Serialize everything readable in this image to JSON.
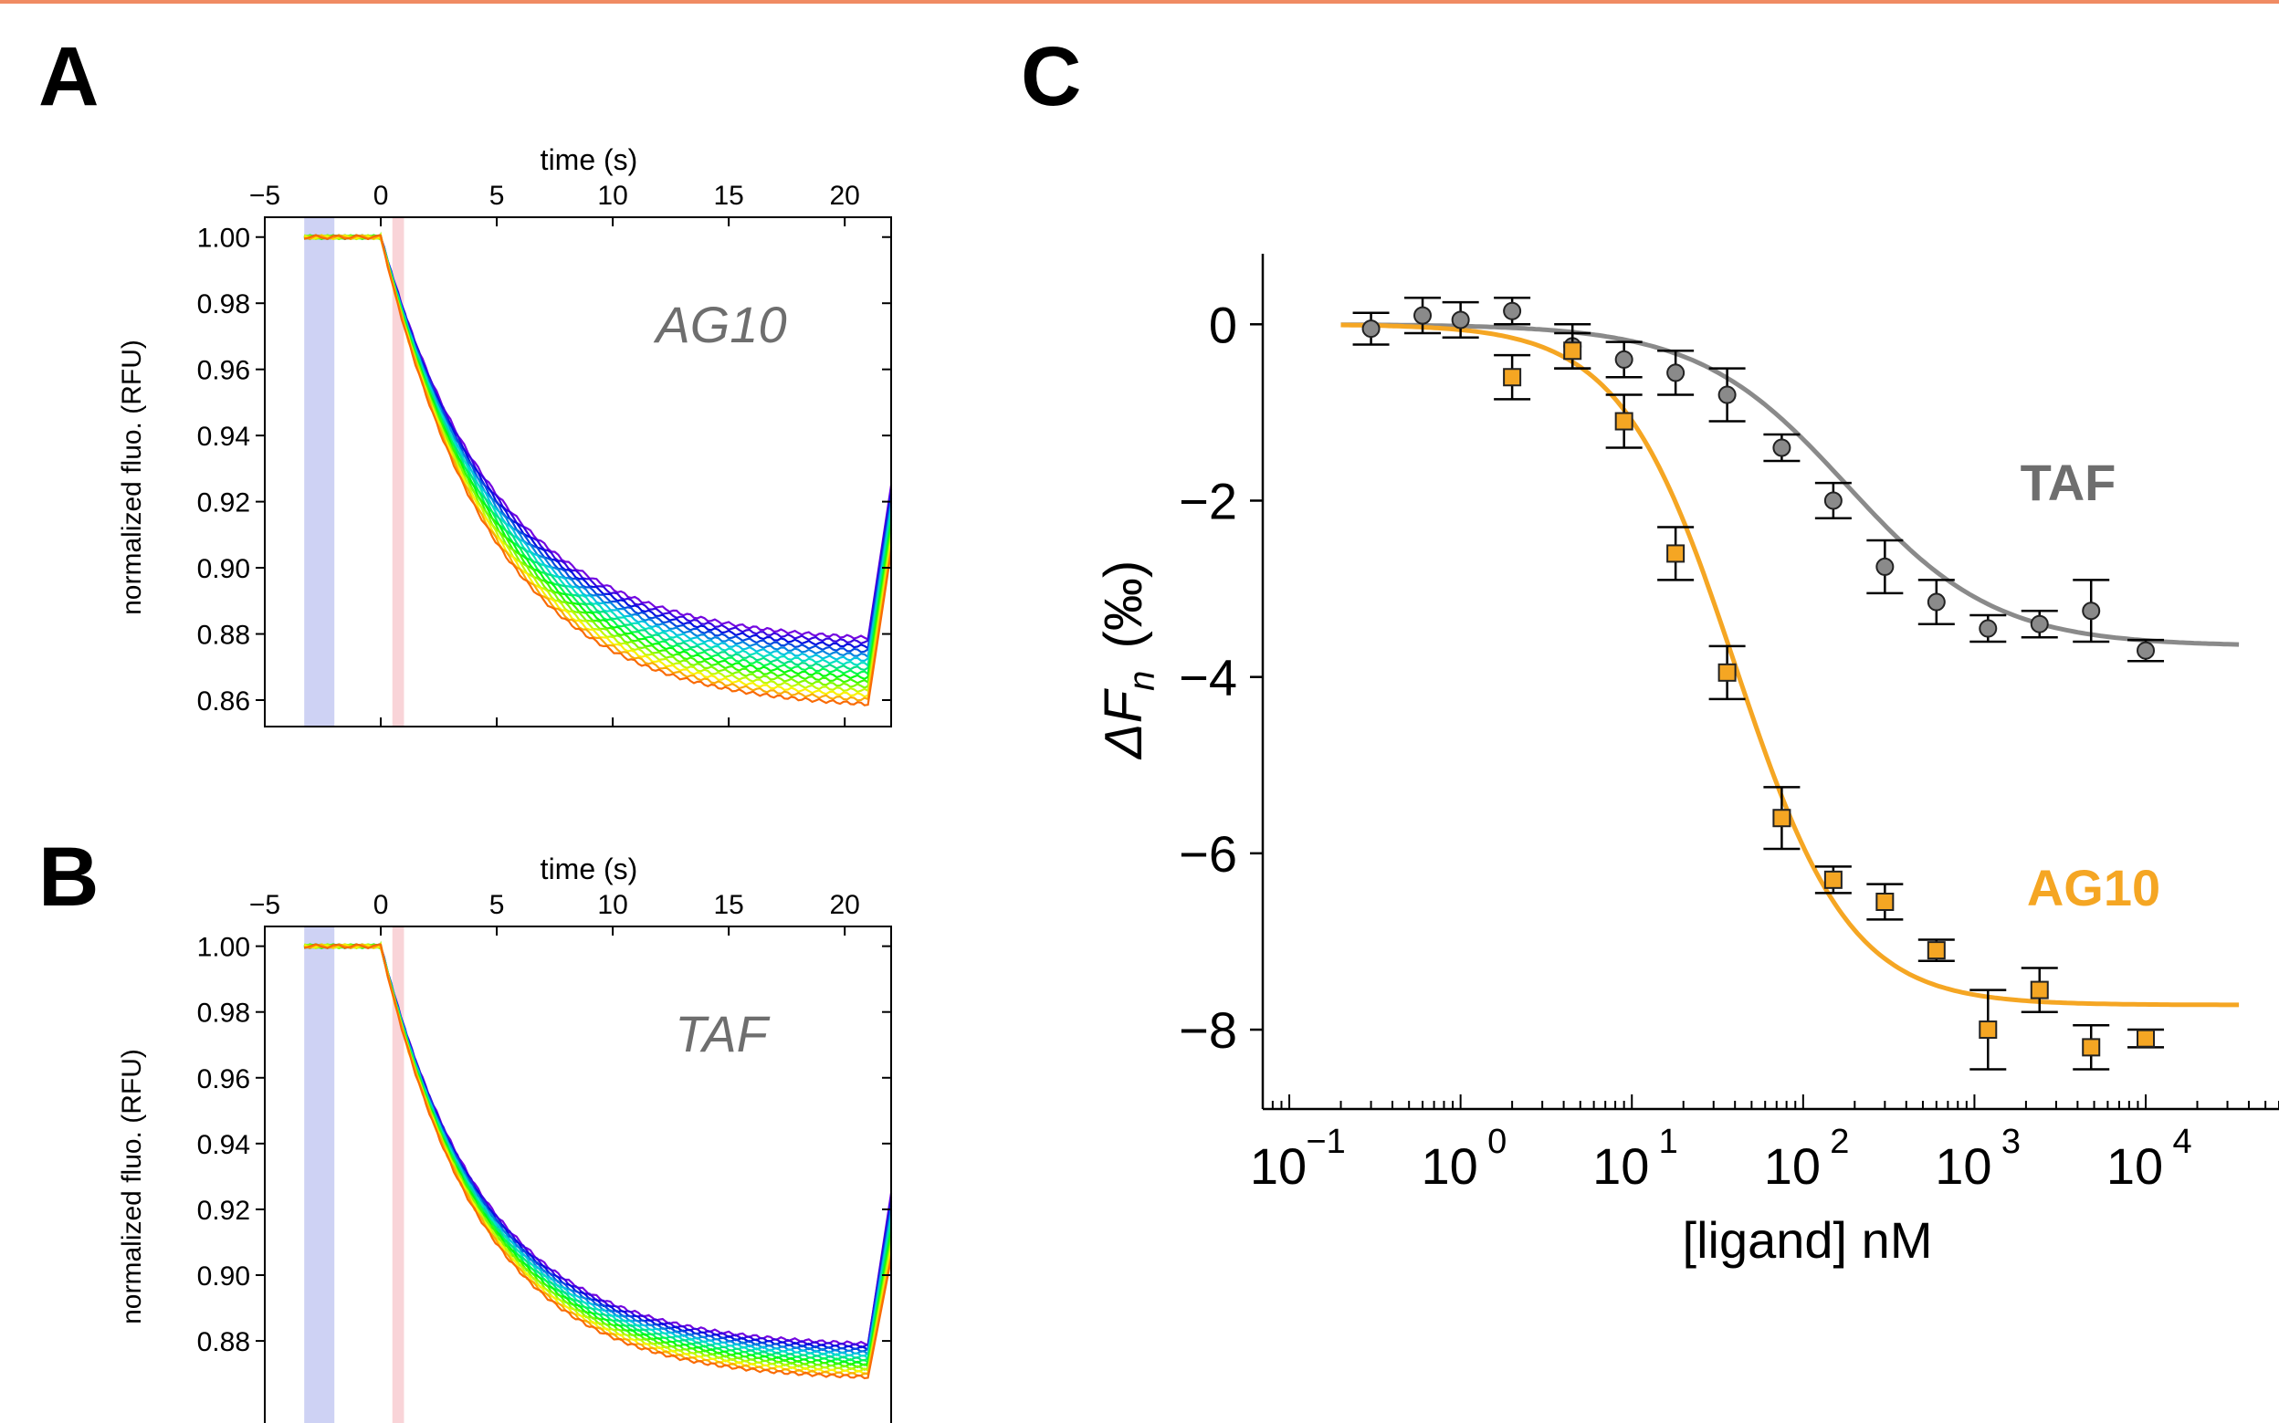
{
  "panels": {
    "a": {
      "letter": "A"
    },
    "b": {
      "letter": "B"
    },
    "c": {
      "letter": "C"
    }
  },
  "chart_data": [
    {
      "panel": "A",
      "type": "line",
      "xlabel": "time (s)",
      "ylabel": "normalized fluo. (RFU)",
      "annotation": "AG10",
      "xlim": [
        -5,
        22
      ],
      "ylim": [
        0.852,
        1.006
      ],
      "xticks": [
        -5,
        0,
        5,
        10,
        15,
        20
      ],
      "xtick_labels": [
        "−5",
        "0",
        "5",
        "10",
        "15",
        "20"
      ],
      "yticks": [
        0.86,
        0.88,
        0.9,
        0.92,
        0.94,
        0.96,
        0.98,
        1.0
      ],
      "ytick_labels": [
        "0.86",
        "0.88",
        "0.90",
        "0.92",
        "0.94",
        "0.96",
        "0.98",
        "1.00"
      ],
      "xaxis_position": "top",
      "shaded_regions": [
        {
          "x": [
            -3.3,
            -2.0
          ],
          "color": "#c9cdf3"
        },
        {
          "x": [
            0.5,
            1.0
          ],
          "color": "#f8cfd4"
        }
      ],
      "traces": {
        "count": 16,
        "baseline": 1.0,
        "start": 0,
        "end": 21,
        "final_range": [
          0.877,
          0.857
        ],
        "tau": 5,
        "recovery_end": 22,
        "color_from": "#5a20b8",
        "color_to": "#f06a14"
      }
    },
    {
      "panel": "B",
      "type": "line",
      "xlabel": "time (s)",
      "ylabel": "normalized fluo. (RFU)",
      "annotation": "TAF",
      "xlim": [
        -5,
        22
      ],
      "ylim": [
        0.852,
        1.006
      ],
      "xticks": [
        -5,
        0,
        5,
        10,
        15,
        20
      ],
      "xtick_labels": [
        "−5",
        "0",
        "5",
        "10",
        "15",
        "20"
      ],
      "yticks": [
        0.88,
        0.9,
        0.92,
        0.94,
        0.96,
        0.98,
        1.0
      ],
      "ytick_labels": [
        "0.88",
        "0.90",
        "0.92",
        "0.94",
        "0.96",
        "0.98",
        "1.00"
      ],
      "xaxis_position": "top",
      "shaded_regions": [
        {
          "x": [
            -3.3,
            -2.0
          ],
          "color": "#c9cdf3"
        },
        {
          "x": [
            0.5,
            1.0
          ],
          "color": "#f8cfd4"
        }
      ],
      "traces": {
        "count": 16,
        "baseline": 1.0,
        "start": 0,
        "end": 21,
        "final_range": [
          0.878,
          0.868
        ],
        "tau": 4.5,
        "recovery_end": 22,
        "color_from": "#5a20b8",
        "color_to": "#f06a14"
      }
    },
    {
      "panel": "C",
      "type": "scatter",
      "xscale": "log",
      "xlabel": "[ligand] nM",
      "ylabel": "ΔF",
      "ylabel_sub": "n",
      "ylabel_unit": "(‰)",
      "xlim": [
        0.07,
        60000
      ],
      "ylim": [
        -8.9,
        0.8
      ],
      "xtick_exponents": [
        "−1",
        "0",
        "1",
        "2",
        "3",
        "4"
      ],
      "yticks": [
        0,
        -2,
        -4,
        -6,
        -8
      ],
      "ytick_labels": [
        "0",
        "−2",
        "−4",
        "−6",
        "−8"
      ],
      "series": [
        {
          "name": "TAF",
          "color": "#8a8a8a",
          "marker": "circle",
          "fit": {
            "top": 0.0,
            "bottom": -3.65,
            "ec50": 180,
            "hill": 1.0
          },
          "x": [
            0.3,
            0.6,
            1.0,
            2.0,
            4.5,
            9.0,
            18,
            36,
            75,
            150,
            300,
            600,
            1200,
            2400,
            4800,
            10000
          ],
          "y": [
            -0.05,
            0.1,
            0.05,
            0.15,
            -0.25,
            -0.4,
            -0.55,
            -0.8,
            -1.4,
            -2.0,
            -2.75,
            -3.15,
            -3.45,
            -3.4,
            -3.25,
            -3.7
          ],
          "err": [
            0.18,
            0.2,
            0.2,
            0.15,
            0.25,
            0.2,
            0.25,
            0.3,
            0.15,
            0.2,
            0.3,
            0.25,
            0.15,
            0.15,
            0.35,
            0.12
          ]
        },
        {
          "name": "AG10",
          "color": "#f5a623",
          "marker": "square",
          "fit": {
            "top": 0.0,
            "bottom": -7.72,
            "ec50": 40,
            "hill": 1.3
          },
          "x": [
            2.0,
            4.5,
            9.0,
            18,
            36,
            75,
            150,
            300,
            600,
            1200,
            2400,
            4800,
            10000
          ],
          "y": [
            -0.6,
            -0.3,
            -1.1,
            -2.6,
            -3.95,
            -5.6,
            -6.3,
            -6.55,
            -7.1,
            -8.0,
            -7.55,
            -8.2,
            -8.1
          ],
          "err": [
            0.25,
            0.2,
            0.3,
            0.3,
            0.3,
            0.35,
            0.15,
            0.2,
            0.12,
            0.45,
            0.25,
            0.25,
            0.1
          ]
        }
      ]
    }
  ]
}
